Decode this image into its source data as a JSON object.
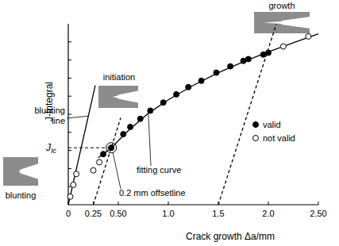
{
  "chart_data": {
    "type": "scatter",
    "x_label": "Crack growth Δa/mm",
    "y_label": "J-Integral",
    "xlim": [
      0,
      2.5
    ],
    "xticks": [
      0,
      0.25,
      {
        "value": 0.5,
        "label": "0.50"
      },
      {
        "value": 1,
        "label": "1.0"
      },
      {
        "value": 1.5,
        "label": "1.5"
      },
      {
        "value": 2,
        "label": "2.0"
      },
      {
        "value": 2.5,
        "label": "2.50"
      }
    ],
    "ylim": [
      0,
      10
    ],
    "yticks": [
      1,
      2,
      3,
      4,
      5,
      6,
      7,
      8,
      9
    ],
    "tick_labels": "x",
    "grid": false,
    "legend": "right",
    "series": [
      {
        "name": "valid",
        "type": "scatter",
        "marker": "filled",
        "color": "#000000",
        "x": [
          0.35,
          0.43,
          0.55,
          0.62,
          0.72,
          0.82,
          0.95,
          1.08,
          1.2,
          1.33,
          1.48,
          1.62,
          1.75,
          1.8,
          1.95,
          2.0
        ],
        "values": [
          2.8,
          3.15,
          3.9,
          4.3,
          4.75,
          5.2,
          5.65,
          6.1,
          6.5,
          6.85,
          7.3,
          7.65,
          7.95,
          8.05,
          8.3,
          8.4
        ]
      },
      {
        "name": "not valid",
        "type": "scatter",
        "marker": "open",
        "color": "#000000",
        "x": [
          0.02,
          0.05,
          0.08,
          0.25,
          0.31,
          2.15,
          2.4
        ],
        "values": [
          0.45,
          1.1,
          1.7,
          1.9,
          2.35,
          8.75,
          9.3
        ]
      },
      {
        "name": "fitting curve",
        "type": "line",
        "line_style": "solid",
        "color": "#000000",
        "x": [
          0.3,
          0.43,
          0.6,
          0.8,
          1.0,
          1.25,
          1.5,
          1.75,
          2.0,
          2.25,
          2.5
        ],
        "values": [
          2.6,
          3.15,
          4.1,
          5.05,
          5.8,
          6.6,
          7.3,
          7.9,
          8.45,
          8.95,
          9.45
        ]
      },
      {
        "name": "blunting line",
        "type": "line",
        "line_style": "solid",
        "color": "#000000",
        "x": [
          0,
          0.27
        ],
        "values": [
          0,
          6.6
        ]
      },
      {
        "name": "0.2 mm offsetline",
        "type": "line",
        "line_style": "dashed",
        "color": "#000000",
        "x": [
          0.25,
          0.524
        ],
        "values": [
          0,
          4.8
        ]
      },
      {
        "type": "line",
        "line_style": "dashed",
        "color": "#000000",
        "x": [
          1.5,
          2.08
        ],
        "values": [
          0,
          10
        ]
      }
    ],
    "annotations": [
      {
        "text": "J",
        "sub": "Ic",
        "x": 0.43,
        "y": 3.15
      },
      {
        "text": "blunting"
      },
      {
        "text": "initiation"
      },
      {
        "text": "growth"
      }
    ]
  }
}
